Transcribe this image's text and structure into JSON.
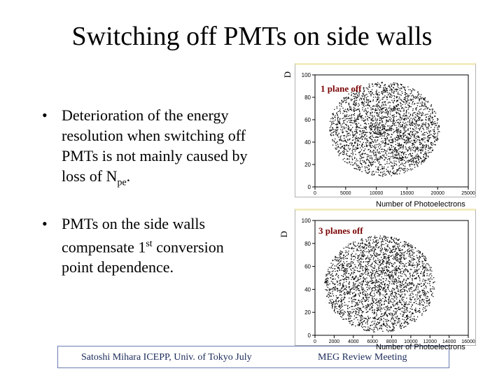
{
  "slide": {
    "title": "Switching off PMTs on side walls",
    "bullets": [
      {
        "text_pre": "Deterioration of the energy resolution when switching off PMTs is not mainly caused by loss of N",
        "sub": "pe",
        "text_post": "."
      },
      {
        "text_pre": "PMTs on the side walls compensate 1",
        "sup": "st",
        "text_post": " conversion point dependence."
      }
    ],
    "bullet_symbol": "•"
  },
  "plots": [
    {
      "label": "1 plane off",
      "ylabel": "D",
      "xlabel": "Number of Photoelectrons",
      "xticks": [
        "0",
        "5000",
        "10000",
        "15000",
        "20000",
        "25000"
      ],
      "yticks": [
        "0",
        "20",
        "40",
        "60",
        "80",
        "100"
      ]
    },
    {
      "label": "3 planes off",
      "ylabel": "D",
      "xlabel": "Number of Photoelectrons",
      "xticks": [
        "0",
        "2000",
        "4000",
        "6000",
        "8000",
        "10000",
        "12000",
        "14000",
        "16000"
      ],
      "yticks": [
        "0",
        "20",
        "40",
        "60",
        "80",
        "100"
      ]
    }
  ],
  "footer": {
    "left": "Satoshi Mihara ICEPP, Univ. of Tokyo July",
    "right": "MEG Review Meeting"
  }
}
